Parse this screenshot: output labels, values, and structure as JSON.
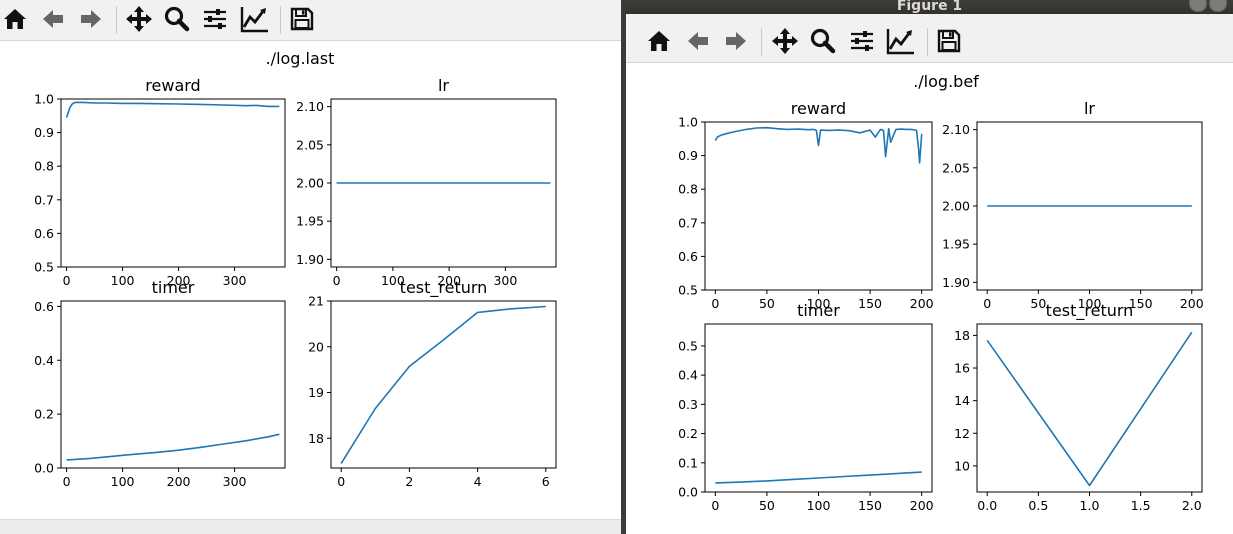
{
  "toolbar": {
    "items": [
      {
        "icon": "home-icon",
        "label": "Home"
      },
      {
        "icon": "back-icon",
        "label": "Back"
      },
      {
        "icon": "forward-icon",
        "label": "Forward"
      },
      {
        "icon": "pan-icon",
        "label": "Pan"
      },
      {
        "icon": "zoom-icon",
        "label": "Zoom"
      },
      {
        "icon": "subplots-icon",
        "label": "Subplots"
      },
      {
        "icon": "customize-icon",
        "label": "Customize"
      },
      {
        "icon": "save-icon",
        "label": "Save"
      }
    ]
  },
  "left": {
    "suptitle": "./log.last"
  },
  "right": {
    "window_title": "Figure 1",
    "suptitle": "./log.bef"
  },
  "colors": {
    "line": "#1f77b4"
  },
  "chart_data": [
    {
      "figure": "left",
      "type": "line",
      "title": "reward",
      "xlim": [
        -10,
        390
      ],
      "ylim": [
        0.5,
        1.0
      ],
      "xticks": [
        0,
        100,
        200,
        300
      ],
      "yticks": [
        0.5,
        0.6,
        0.7,
        0.8,
        0.9,
        1.0
      ],
      "ytick_labels": [
        "0.5",
        "0.6",
        "0.7",
        "0.8",
        "0.9",
        "1.0"
      ],
      "x": [
        0,
        3,
        6,
        10,
        15,
        20,
        30,
        50,
        70,
        100,
        130,
        160,
        200,
        240,
        280,
        320,
        340,
        360,
        380
      ],
      "y": [
        0.945,
        0.96,
        0.975,
        0.985,
        0.99,
        0.99,
        0.99,
        0.988,
        0.988,
        0.987,
        0.987,
        0.986,
        0.985,
        0.984,
        0.982,
        0.98,
        0.981,
        0.978,
        0.978
      ]
    },
    {
      "figure": "left",
      "type": "line",
      "title": "lr",
      "xlim": [
        -10,
        390
      ],
      "ylim": [
        1.89,
        2.11
      ],
      "xticks": [
        0,
        100,
        200,
        300
      ],
      "yticks": [
        1.9,
        1.95,
        2.0,
        2.05,
        2.1
      ],
      "ytick_labels": [
        "1.90",
        "1.95",
        "2.00",
        "2.05",
        "2.10"
      ],
      "x": [
        0,
        380
      ],
      "y": [
        2.0,
        2.0
      ]
    },
    {
      "figure": "left",
      "type": "line",
      "title": "timer",
      "xlim": [
        -10,
        390
      ],
      "ylim": [
        0.0,
        0.62
      ],
      "xticks": [
        0,
        100,
        200,
        300
      ],
      "yticks": [
        0.0,
        0.2,
        0.4,
        0.6
      ],
      "ytick_labels": [
        "0.0",
        "0.2",
        "0.4",
        "0.6"
      ],
      "x": [
        0,
        40,
        80,
        120,
        160,
        200,
        240,
        280,
        320,
        360,
        380
      ],
      "y": [
        0.03,
        0.035,
        0.043,
        0.051,
        0.058,
        0.066,
        0.077,
        0.089,
        0.101,
        0.116,
        0.125
      ]
    },
    {
      "figure": "left",
      "type": "line",
      "title": "test_return",
      "xlim": [
        -0.3,
        6.3
      ],
      "ylim": [
        17.35,
        21.0
      ],
      "xticks": [
        0,
        2,
        4,
        6
      ],
      "yticks": [
        18,
        19,
        20,
        21
      ],
      "ytick_labels": [
        "18",
        "19",
        "20",
        "21"
      ],
      "x": [
        0,
        1,
        2,
        3,
        4,
        5,
        6
      ],
      "y": [
        17.45,
        18.65,
        19.57,
        20.15,
        20.75,
        20.83,
        20.88
      ]
    },
    {
      "figure": "right",
      "type": "line",
      "title": "reward",
      "xlim": [
        -10,
        210
      ],
      "ylim": [
        0.5,
        1.0
      ],
      "xticks": [
        0,
        50,
        100,
        150,
        200
      ],
      "yticks": [
        0.5,
        0.6,
        0.7,
        0.8,
        0.9,
        1.0
      ],
      "ytick_labels": [
        "0.5",
        "0.6",
        "0.7",
        "0.8",
        "0.9",
        "1.0"
      ],
      "x": [
        0,
        2,
        5,
        10,
        20,
        30,
        40,
        50,
        60,
        70,
        80,
        90,
        95,
        98,
        100,
        102,
        110,
        120,
        130,
        140,
        150,
        155,
        160,
        163,
        165,
        168,
        170,
        175,
        180,
        185,
        190,
        195,
        197,
        198,
        200
      ],
      "y": [
        0.945,
        0.955,
        0.96,
        0.965,
        0.972,
        0.978,
        0.982,
        0.983,
        0.98,
        0.978,
        0.979,
        0.977,
        0.978,
        0.975,
        0.93,
        0.976,
        0.975,
        0.976,
        0.974,
        0.968,
        0.976,
        0.955,
        0.978,
        0.975,
        0.897,
        0.98,
        0.94,
        0.978,
        0.979,
        0.978,
        0.978,
        0.975,
        0.92,
        0.878,
        0.965
      ]
    },
    {
      "figure": "right",
      "type": "line",
      "title": "lr",
      "xlim": [
        -10,
        210
      ],
      "ylim": [
        1.89,
        2.11
      ],
      "xticks": [
        0,
        50,
        100,
        150,
        200
      ],
      "yticks": [
        1.9,
        1.95,
        2.0,
        2.05,
        2.1
      ],
      "ytick_labels": [
        "1.90",
        "1.95",
        "2.00",
        "2.05",
        "2.10"
      ],
      "x": [
        0,
        200
      ],
      "y": [
        2.0,
        2.0
      ]
    },
    {
      "figure": "right",
      "type": "line",
      "title": "timer",
      "xlim": [
        -10,
        210
      ],
      "ylim": [
        0.0,
        0.575
      ],
      "xticks": [
        0,
        50,
        100,
        150,
        200
      ],
      "yticks": [
        0.0,
        0.1,
        0.2,
        0.3,
        0.4,
        0.5
      ],
      "ytick_labels": [
        "0.0",
        "0.1",
        "0.2",
        "0.3",
        "0.4",
        "0.5"
      ],
      "x": [
        0,
        25,
        50,
        75,
        100,
        125,
        150,
        175,
        200
      ],
      "y": [
        0.031,
        0.034,
        0.038,
        0.043,
        0.048,
        0.053,
        0.058,
        0.063,
        0.068
      ]
    },
    {
      "figure": "right",
      "type": "line",
      "title": "test_return",
      "xlim": [
        -0.1,
        2.1
      ],
      "ylim": [
        8.4,
        18.7
      ],
      "xticks": [
        0.0,
        0.5,
        1.0,
        1.5,
        2.0
      ],
      "yticks": [
        10,
        12,
        14,
        16,
        18
      ],
      "xtick_labels": [
        "0.0",
        "0.5",
        "1.0",
        "1.5",
        "2.0"
      ],
      "ytick_labels": [
        "10",
        "12",
        "14",
        "16",
        "18"
      ],
      "x": [
        0,
        1,
        2
      ],
      "y": [
        17.7,
        8.8,
        18.2
      ]
    }
  ]
}
